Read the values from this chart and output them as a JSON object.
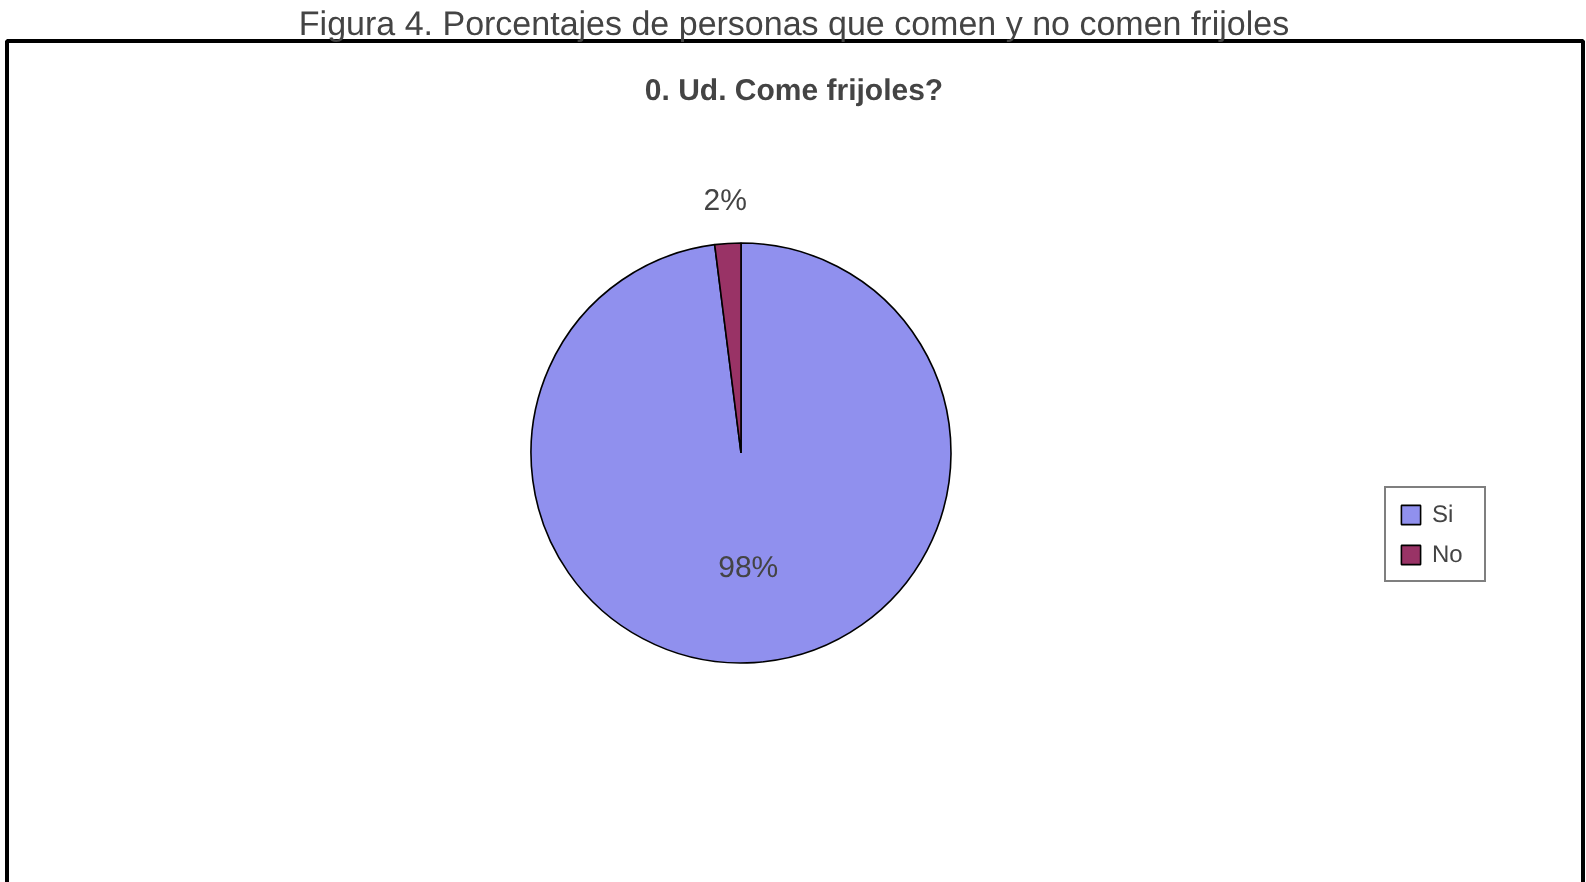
{
  "chart_data": {
    "type": "pie",
    "title": "0. Ud. Come frijoles?",
    "annotations": [
      "Figura 4. Porcentajes de personas que comen y no comen frijoles"
    ],
    "categories": [
      "Si",
      "No"
    ],
    "values": [
      98,
      2
    ],
    "colors": [
      "#9090ee",
      "#993366"
    ],
    "value_labels": [
      "98%",
      "2%"
    ],
    "legend": "right"
  }
}
